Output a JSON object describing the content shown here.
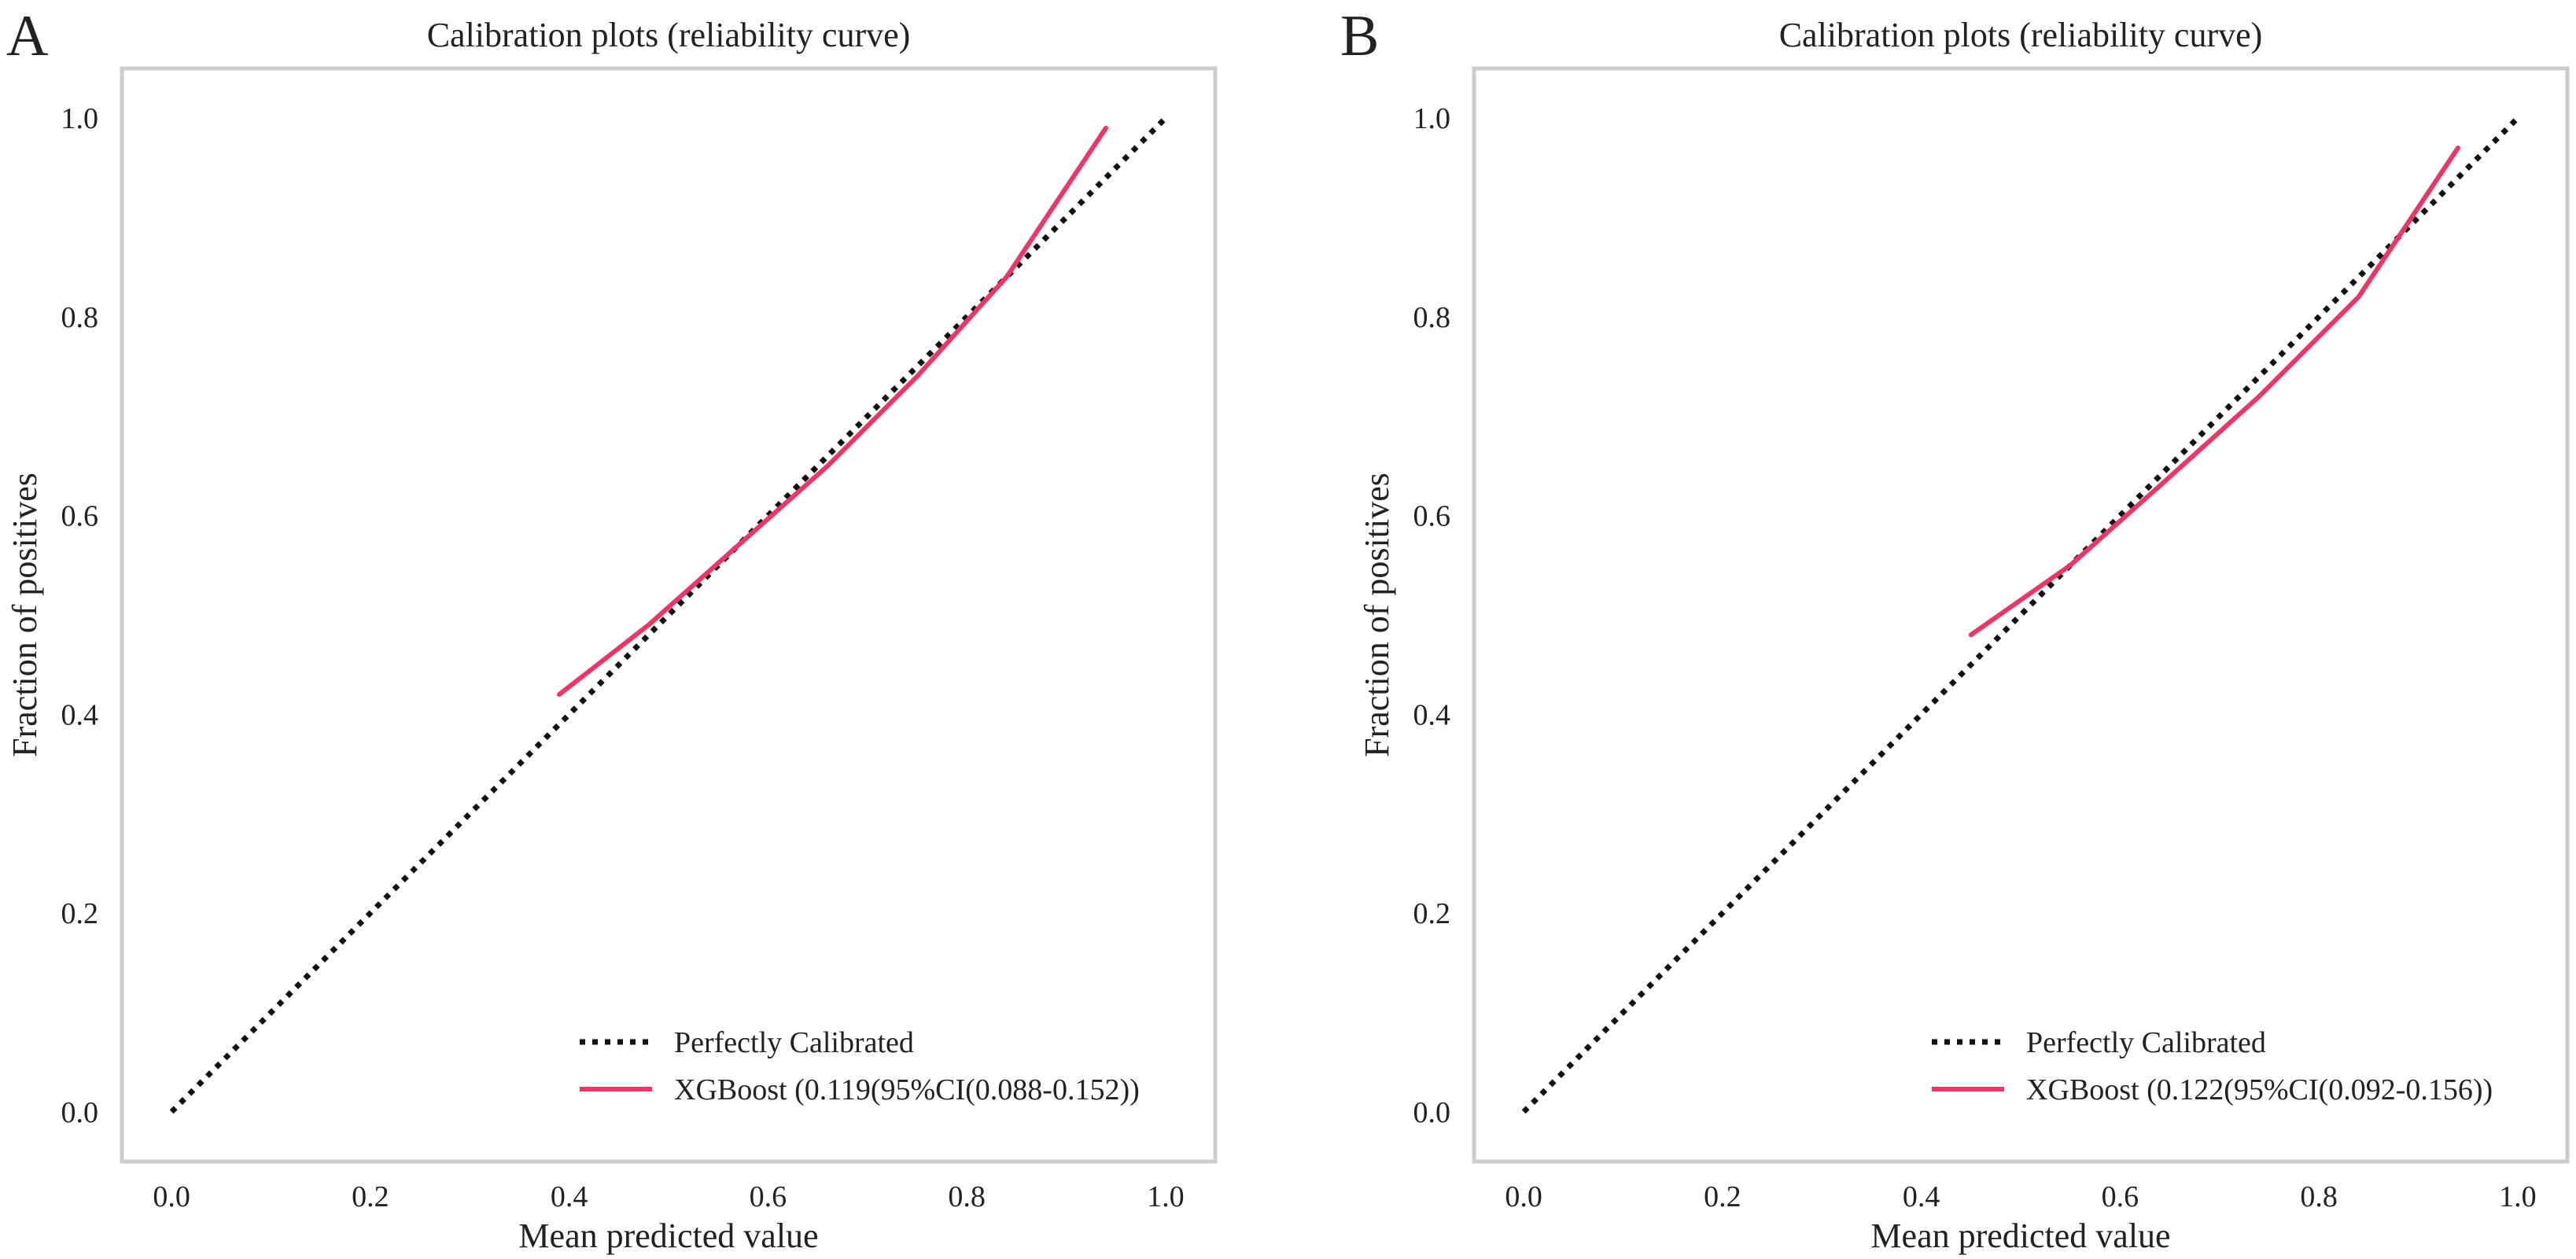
{
  "colors": {
    "perfect_line": "#111111",
    "model_line": "#ea3766",
    "frame": "#cccccc"
  },
  "chart_data": [
    {
      "type": "line",
      "panel_label": "A",
      "title": "Calibration plots  (reliability curve)",
      "xlabel": "Mean predicted value",
      "ylabel": "Fraction of positives",
      "xlim": [
        -0.05,
        1.05
      ],
      "ylim": [
        -0.05,
        1.05
      ],
      "xticks": [
        0.0,
        0.2,
        0.4,
        0.6,
        0.8,
        1.0
      ],
      "yticks": [
        0.0,
        0.2,
        0.4,
        0.6,
        0.8,
        1.0
      ],
      "xtick_labels": [
        "0.0",
        "0.2",
        "0.4",
        "0.6",
        "0.8",
        "1.0"
      ],
      "ytick_labels": [
        "0.0",
        "0.2",
        "0.4",
        "0.6",
        "0.8",
        "1.0"
      ],
      "grid": false,
      "legend_position": "bottom-right",
      "series": [
        {
          "name": "Perfectly Calibrated",
          "style": "dotted",
          "x": [
            0.0,
            1.0
          ],
          "y": [
            0.0,
            1.0
          ]
        },
        {
          "name": "XGBoost (0.119(95%CI(0.088-0.152))",
          "style": "solid",
          "x": [
            0.39,
            0.48,
            0.57,
            0.66,
            0.75,
            0.84,
            0.94
          ],
          "y": [
            0.42,
            0.49,
            0.57,
            0.65,
            0.74,
            0.84,
            0.99
          ]
        }
      ]
    },
    {
      "type": "line",
      "panel_label": "B",
      "title": "Calibration plots  (reliability curve)",
      "xlabel": "Mean predicted value",
      "ylabel": "Fraction of positives",
      "xlim": [
        -0.05,
        1.05
      ],
      "ylim": [
        -0.05,
        1.05
      ],
      "xticks": [
        0.0,
        0.2,
        0.4,
        0.6,
        0.8,
        1.0
      ],
      "yticks": [
        0.0,
        0.2,
        0.4,
        0.6,
        0.8,
        1.0
      ],
      "xtick_labels": [
        "0.0",
        "0.2",
        "0.4",
        "0.6",
        "0.8",
        "1.0"
      ],
      "ytick_labels": [
        "0.0",
        "0.2",
        "0.4",
        "0.6",
        "0.8",
        "1.0"
      ],
      "grid": false,
      "legend_position": "bottom-right",
      "series": [
        {
          "name": "Perfectly Calibrated",
          "style": "dotted",
          "x": [
            0.0,
            1.0
          ],
          "y": [
            0.0,
            1.0
          ]
        },
        {
          "name": "XGBoost (0.122(95%CI(0.092-0.156))",
          "style": "solid",
          "x": [
            0.45,
            0.55,
            0.64,
            0.74,
            0.84,
            0.94
          ],
          "y": [
            0.48,
            0.55,
            0.63,
            0.72,
            0.82,
            0.97
          ]
        }
      ]
    }
  ]
}
